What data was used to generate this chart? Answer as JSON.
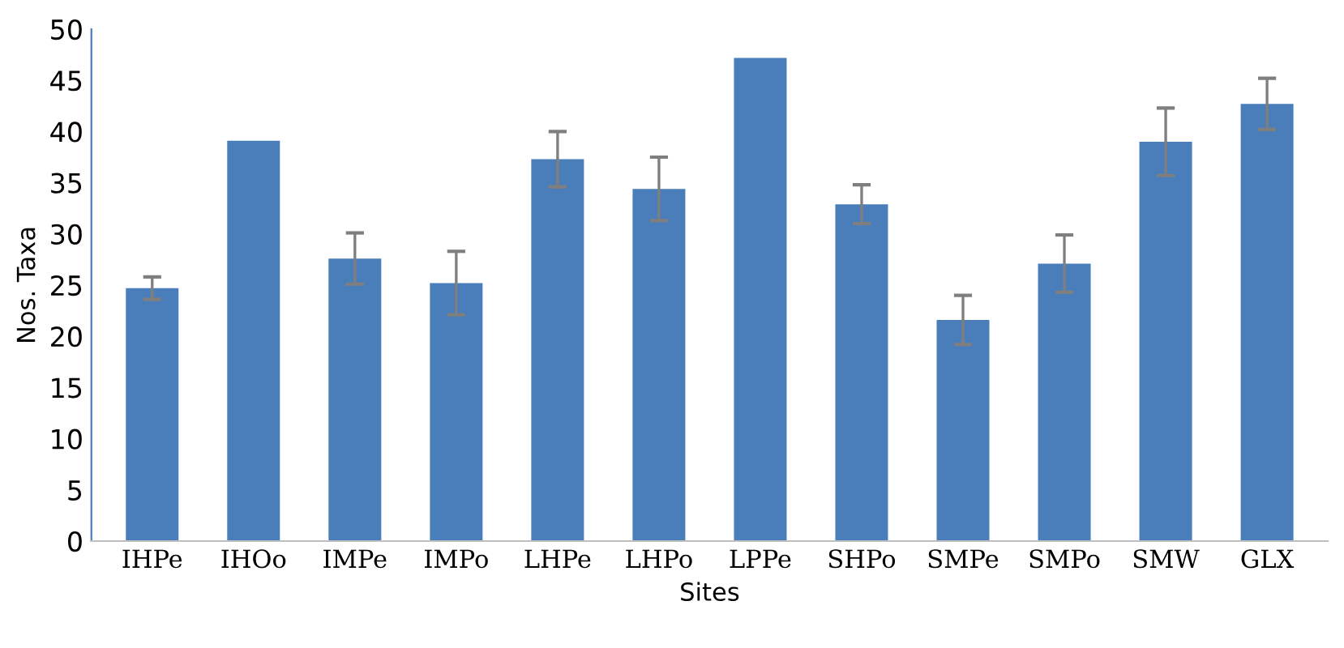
{
  "chart_data": {
    "type": "bar",
    "xlabel": "Sites",
    "ylabel": "Nos. Taxa",
    "categories": [
      "IHPe",
      "IHOo",
      "IMPe",
      "IMPo",
      "LHPe",
      "LHPo",
      "LPPe",
      "SHPo",
      "SMPe",
      "SMPo",
      "SMW",
      "GLX"
    ],
    "values": [
      24.7,
      39.1,
      27.6,
      25.2,
      37.3,
      34.4,
      47.2,
      32.9,
      21.6,
      27.1,
      39.0,
      42.7
    ],
    "errors": [
      1.1,
      null,
      2.5,
      3.1,
      2.7,
      3.1,
      null,
      1.9,
      2.4,
      2.8,
      3.3,
      2.5
    ],
    "color": "#4a7ebb",
    "ylim": [
      0,
      50
    ],
    "yticks": [
      0,
      5,
      10,
      15,
      20,
      25,
      30,
      35,
      40,
      45,
      50
    ],
    "grid": false
  }
}
